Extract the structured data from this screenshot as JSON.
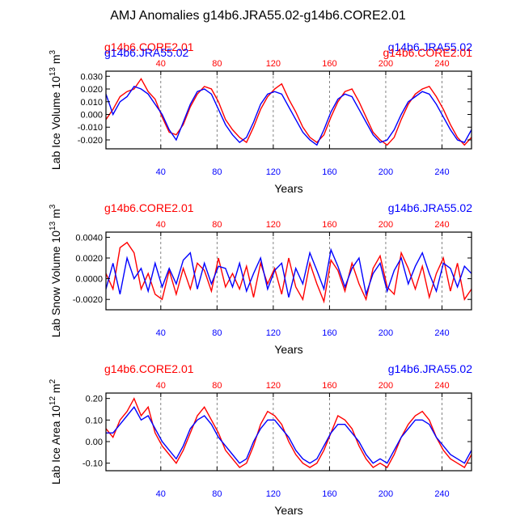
{
  "title": "AMJ Anomalies g14b6.JRA55.02-g14b6.CORE2.01",
  "colors": {
    "core": "#ff0000",
    "jra": "#0000ff",
    "axis": "#000000",
    "grid": "#666666"
  },
  "chart_data": [
    {
      "type": "line",
      "ylabel": "Lab Ice Volume 10",
      "ylabel_exp": "13",
      "ylabel_unit": " m",
      "ylabel_unit_exp": "3",
      "xlabel": "Years",
      "xlim": [
        1,
        261
      ],
      "ylim": [
        -0.027,
        0.034
      ],
      "xticks": [
        40,
        80,
        120,
        160,
        200,
        240
      ],
      "xtick_labels": [
        "40",
        "80",
        "120",
        "160",
        "200",
        "240"
      ],
      "yticks": [
        -0.02,
        -0.01,
        0.0,
        0.01,
        0.02,
        0.03
      ],
      "ytick_labels": [
        "-0.020",
        "-0.010",
        "0.000",
        "0.010",
        "0.020",
        "0.030"
      ],
      "series_labels": {
        "left": "g14b6.CORE2.01",
        "right": "g14b6.JRA55.02",
        "left_overlap": "g14b6.JRA55.02",
        "right_overlap": "g14b6.CORE2.01"
      },
      "series": [
        {
          "name": "g14b6.CORE2.01",
          "color": "#ff0000",
          "x": [
            1,
            6,
            11,
            16,
            21,
            26,
            31,
            36,
            41,
            46,
            51,
            56,
            61,
            66,
            71,
            76,
            81,
            86,
            91,
            96,
            101,
            106,
            111,
            116,
            121,
            126,
            131,
            136,
            141,
            146,
            151,
            156,
            161,
            166,
            171,
            176,
            181,
            186,
            191,
            196,
            201,
            206,
            211,
            216,
            221,
            226,
            231,
            236,
            241,
            246,
            251,
            256,
            261
          ],
          "values": [
            -0.004,
            0.004,
            0.014,
            0.018,
            0.02,
            0.028,
            0.018,
            0.012,
            -0.002,
            -0.014,
            -0.016,
            -0.008,
            0.006,
            0.016,
            0.022,
            0.02,
            0.01,
            -0.004,
            -0.012,
            -0.018,
            -0.022,
            -0.01,
            0.004,
            0.014,
            0.02,
            0.024,
            0.012,
            0.002,
            -0.01,
            -0.018,
            -0.022,
            -0.016,
            -0.002,
            0.01,
            0.018,
            0.02,
            0.01,
            -0.002,
            -0.014,
            -0.02,
            -0.024,
            -0.018,
            -0.004,
            0.008,
            0.016,
            0.02,
            0.022,
            0.014,
            0.004,
            -0.008,
            -0.018,
            -0.024,
            -0.018
          ]
        },
        {
          "name": "g14b6.JRA55.02",
          "color": "#0000ff",
          "x": [
            1,
            6,
            11,
            16,
            21,
            26,
            31,
            36,
            41,
            46,
            51,
            56,
            61,
            66,
            71,
            76,
            81,
            86,
            91,
            96,
            101,
            106,
            111,
            116,
            121,
            126,
            131,
            136,
            141,
            146,
            151,
            156,
            161,
            166,
            171,
            176,
            181,
            186,
            191,
            196,
            201,
            206,
            211,
            216,
            221,
            226,
            231,
            236,
            241,
            246,
            251,
            256,
            261
          ],
          "values": [
            0.016,
            0.0,
            0.01,
            0.014,
            0.022,
            0.02,
            0.016,
            0.008,
            0.0,
            -0.012,
            -0.02,
            -0.006,
            0.008,
            0.018,
            0.02,
            0.016,
            0.004,
            -0.008,
            -0.016,
            -0.022,
            -0.018,
            -0.006,
            0.008,
            0.016,
            0.018,
            0.016,
            0.006,
            -0.004,
            -0.014,
            -0.02,
            -0.024,
            -0.012,
            0.002,
            0.012,
            0.016,
            0.014,
            0.004,
            -0.006,
            -0.016,
            -0.022,
            -0.02,
            -0.012,
            0.0,
            0.01,
            0.014,
            0.018,
            0.016,
            0.008,
            -0.002,
            -0.012,
            -0.02,
            -0.022,
            -0.012
          ]
        }
      ]
    },
    {
      "type": "line",
      "ylabel": "Lab Snow Volume 10",
      "ylabel_exp": "13",
      "ylabel_unit": " m",
      "ylabel_unit_exp": "3",
      "xlabel": "Years",
      "xlim": [
        1,
        261
      ],
      "ylim": [
        -0.003,
        0.0045
      ],
      "xticks": [
        40,
        80,
        120,
        160,
        200,
        240
      ],
      "xtick_labels": [
        "40",
        "80",
        "120",
        "160",
        "200",
        "240"
      ],
      "yticks": [
        -0.002,
        0.0,
        0.002,
        0.004
      ],
      "ytick_labels": [
        "-0.0020",
        "0.0000",
        "0.0020",
        "0.0040"
      ],
      "series_labels": {
        "left": "g14b6.CORE2.01",
        "right": "g14b6.JRA55.02"
      },
      "series": [
        {
          "name": "g14b6.CORE2.01",
          "color": "#ff0000",
          "x": [
            1,
            6,
            11,
            16,
            21,
            26,
            31,
            36,
            41,
            46,
            51,
            56,
            61,
            66,
            71,
            76,
            81,
            86,
            91,
            96,
            101,
            106,
            111,
            116,
            121,
            126,
            131,
            136,
            141,
            146,
            151,
            156,
            161,
            166,
            171,
            176,
            181,
            186,
            191,
            196,
            201,
            206,
            211,
            216,
            221,
            226,
            231,
            236,
            241,
            246,
            251,
            256,
            261
          ],
          "values": [
            0.0005,
            -0.001,
            0.003,
            0.0035,
            0.0025,
            -0.001,
            0.0005,
            -0.0015,
            -0.002,
            0.0008,
            -0.0015,
            0.001,
            -0.001,
            0.0015,
            0.0008,
            -0.0012,
            0.002,
            -0.0008,
            0.0005,
            -0.001,
            0.0012,
            -0.0018,
            0.0015,
            -0.0005,
            0.001,
            -0.0015,
            0.002,
            -0.0008,
            -0.002,
            0.0015,
            -0.0005,
            -0.0022,
            0.0018,
            0.0008,
            -0.0012,
            0.0015,
            -0.0005,
            -0.002,
            0.001,
            0.0022,
            -0.0008,
            -0.0015,
            0.0025,
            0.001,
            -0.001,
            0.0012,
            -0.0018,
            0.0005,
            0.002,
            -0.0012,
            0.0015,
            -0.002,
            -0.001
          ]
        },
        {
          "name": "g14b6.JRA55.02",
          "color": "#0000ff",
          "x": [
            1,
            6,
            11,
            16,
            21,
            26,
            31,
            36,
            41,
            46,
            51,
            56,
            61,
            66,
            71,
            76,
            81,
            86,
            91,
            96,
            101,
            106,
            111,
            116,
            121,
            126,
            131,
            136,
            141,
            146,
            151,
            156,
            161,
            166,
            171,
            176,
            181,
            186,
            191,
            196,
            201,
            206,
            211,
            216,
            221,
            226,
            231,
            236,
            241,
            246,
            251,
            256,
            261
          ],
          "values": [
            -0.001,
            0.0015,
            -0.0015,
            0.002,
            0.0,
            0.001,
            -0.0012,
            0.0015,
            -0.0008,
            0.001,
            -0.0005,
            0.0018,
            0.0025,
            -0.001,
            0.0015,
            -0.0005,
            0.0012,
            0.001,
            -0.0008,
            0.0015,
            -0.0012,
            0.0005,
            0.002,
            -0.001,
            0.0008,
            0.0015,
            -0.0018,
            0.001,
            -0.0005,
            0.0025,
            0.0008,
            -0.001,
            0.0028,
            0.0012,
            -0.0008,
            0.001,
            0.002,
            -0.0015,
            0.0005,
            0.0015,
            -0.0012,
            0.0008,
            0.002,
            -0.0005,
            0.0012,
            0.0025,
            0.0005,
            -0.0012,
            0.0015,
            0.001,
            -0.0008,
            0.0012,
            0.0005
          ]
        }
      ]
    },
    {
      "type": "line",
      "ylabel": "Lab Ice Area 10",
      "ylabel_exp": "12",
      "ylabel_unit": " m",
      "ylabel_unit_exp": "2",
      "xlabel": "Years",
      "xlim": [
        1,
        261
      ],
      "ylim": [
        -0.135,
        0.225
      ],
      "xticks": [
        40,
        80,
        120,
        160,
        200,
        240
      ],
      "xtick_labels": [
        "40",
        "80",
        "120",
        "160",
        "200",
        "240"
      ],
      "yticks": [
        -0.1,
        0.0,
        0.1,
        0.2
      ],
      "ytick_labels": [
        "-0.10",
        "0.00",
        "0.10",
        "0.20"
      ],
      "series_labels": {
        "left": "g14b6.CORE2.01",
        "right": "g14b6.JRA55.02"
      },
      "series": [
        {
          "name": "g14b6.CORE2.01",
          "color": "#ff0000",
          "x": [
            1,
            6,
            11,
            16,
            21,
            26,
            31,
            36,
            41,
            46,
            51,
            56,
            61,
            66,
            71,
            76,
            81,
            86,
            91,
            96,
            101,
            106,
            111,
            116,
            121,
            126,
            131,
            136,
            141,
            146,
            151,
            156,
            161,
            166,
            171,
            176,
            181,
            186,
            191,
            196,
            201,
            206,
            211,
            216,
            221,
            226,
            231,
            236,
            241,
            246,
            251,
            256,
            261
          ],
          "values": [
            0.06,
            0.02,
            0.1,
            0.14,
            0.2,
            0.12,
            0.16,
            0.04,
            -0.02,
            -0.06,
            -0.1,
            -0.04,
            0.04,
            0.12,
            0.16,
            0.1,
            0.04,
            -0.04,
            -0.08,
            -0.12,
            -0.1,
            -0.02,
            0.08,
            0.14,
            0.12,
            0.08,
            0.0,
            -0.06,
            -0.1,
            -0.12,
            -0.1,
            -0.04,
            0.04,
            0.12,
            0.1,
            0.06,
            -0.02,
            -0.08,
            -0.12,
            -0.1,
            -0.12,
            -0.06,
            0.02,
            0.08,
            0.12,
            0.14,
            0.1,
            0.02,
            -0.04,
            -0.08,
            -0.1,
            -0.12,
            -0.06
          ]
        },
        {
          "name": "g14b6.JRA55.02",
          "color": "#0000ff",
          "x": [
            1,
            6,
            11,
            16,
            21,
            26,
            31,
            36,
            41,
            46,
            51,
            56,
            61,
            66,
            71,
            76,
            81,
            86,
            91,
            96,
            101,
            106,
            111,
            116,
            121,
            126,
            131,
            136,
            141,
            146,
            151,
            156,
            161,
            166,
            171,
            176,
            181,
            186,
            191,
            196,
            201,
            206,
            211,
            216,
            221,
            226,
            231,
            236,
            241,
            246,
            251,
            256,
            261
          ],
          "values": [
            0.04,
            0.04,
            0.08,
            0.12,
            0.16,
            0.1,
            0.12,
            0.06,
            0.0,
            -0.04,
            -0.08,
            -0.02,
            0.06,
            0.1,
            0.12,
            0.08,
            0.02,
            -0.02,
            -0.06,
            -0.1,
            -0.08,
            0.0,
            0.06,
            0.1,
            0.1,
            0.06,
            0.02,
            -0.04,
            -0.08,
            -0.1,
            -0.08,
            -0.02,
            0.04,
            0.08,
            0.08,
            0.04,
            0.0,
            -0.06,
            -0.1,
            -0.08,
            -0.1,
            -0.04,
            0.02,
            0.06,
            0.1,
            0.1,
            0.08,
            0.02,
            -0.02,
            -0.06,
            -0.08,
            -0.1,
            -0.04
          ]
        }
      ]
    }
  ]
}
